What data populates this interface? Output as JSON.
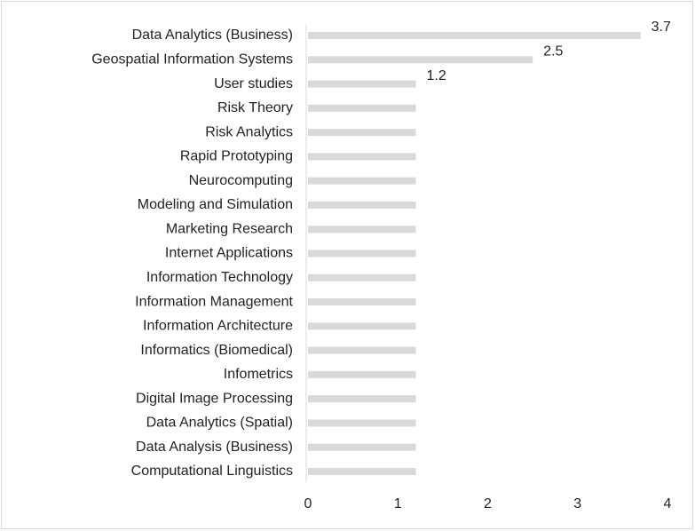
{
  "chart_data": {
    "type": "hbar",
    "categories": [
      "Data Analytics (Business)",
      "Geospatial Information Systems",
      "User studies",
      "Risk Theory",
      "Risk Analytics",
      "Rapid Prototyping",
      "Neurocomputing",
      "Modeling and Simulation",
      "Marketing Research",
      "Internet Applications",
      "Information Technology",
      "Information Management",
      "Information Architecture",
      "Informatics (Biomedical)",
      "Infometrics",
      "Digital Image Processing",
      "Data Analytics (Spatial)",
      "Data Analysis (Business)",
      "Computational Linguistics"
    ],
    "values": [
      3.7,
      2.5,
      1.2,
      1.2,
      1.2,
      1.2,
      1.2,
      1.2,
      1.2,
      1.2,
      1.2,
      1.2,
      1.2,
      1.2,
      1.2,
      1.2,
      1.2,
      1.2,
      1.2
    ],
    "value_labels": [
      "3.7",
      "2.5",
      "1.2",
      null,
      null,
      null,
      null,
      null,
      null,
      null,
      null,
      null,
      null,
      null,
      null,
      null,
      null,
      null,
      null
    ],
    "color": "#d9d9d9",
    "xlim": [
      0,
      4
    ],
    "xticks": [
      0,
      1,
      2,
      3,
      4
    ],
    "grid": false
  }
}
